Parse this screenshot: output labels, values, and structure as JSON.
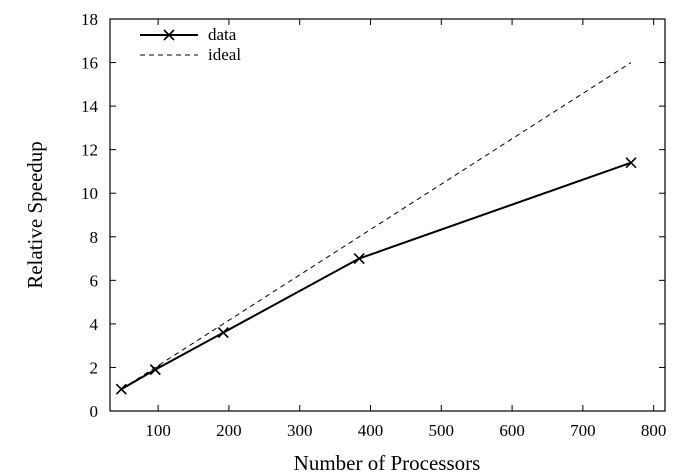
{
  "chart_data": {
    "type": "line",
    "title": "",
    "xlabel": "Number of Processors",
    "ylabel": "Relative Speedup",
    "xlim": [
      32,
      816
    ],
    "ylim": [
      0,
      18
    ],
    "x_ticks": [
      100,
      200,
      300,
      400,
      500,
      600,
      700,
      800
    ],
    "y_ticks": [
      0,
      2,
      4,
      6,
      8,
      10,
      12,
      14,
      16,
      18
    ],
    "grid": false,
    "legend_position": "top-left",
    "series": [
      {
        "name": "data",
        "style": "solid line with x markers",
        "color": "#000000",
        "points": [
          {
            "x": 48,
            "y": 1.0
          },
          {
            "x": 96,
            "y": 1.9
          },
          {
            "x": 192,
            "y": 3.6
          },
          {
            "x": 384,
            "y": 7.0
          },
          {
            "x": 768,
            "y": 11.4
          }
        ]
      },
      {
        "name": "ideal",
        "style": "dashed line",
        "color": "#000000",
        "points": [
          {
            "x": 48,
            "y": 1.0
          },
          {
            "x": 768,
            "y": 16.0
          }
        ]
      }
    ]
  }
}
